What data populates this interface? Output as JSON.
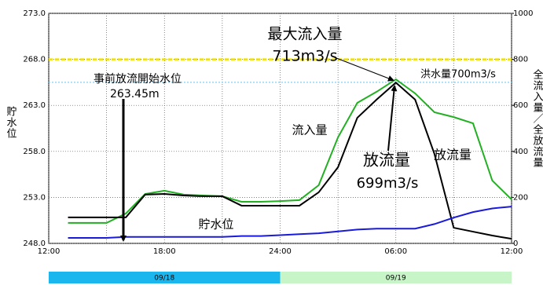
{
  "chart_data": {
    "type": "line",
    "x": [
      1,
      2,
      3,
      4,
      5,
      6,
      7,
      8,
      9,
      10,
      11,
      12,
      13,
      14,
      15,
      16,
      17,
      18,
      19,
      20,
      21,
      22,
      23,
      24
    ],
    "xlim": [
      0,
      24
    ],
    "xticks": [
      {
        "value": 0,
        "label": "12:00"
      },
      {
        "value": 6,
        "label": "18:00"
      },
      {
        "value": 12,
        "label": "24:00"
      },
      {
        "value": 18,
        "label": "06:00"
      },
      {
        "value": 24,
        "label": "12:00"
      }
    ],
    "ylabel": "貯水位",
    "ylim": [
      248,
      273
    ],
    "yticks": [
      {
        "value": 248,
        "label": "248.0"
      },
      {
        "value": 253,
        "label": "253.0"
      },
      {
        "value": 258,
        "label": "258.0"
      },
      {
        "value": 263,
        "label": "263.0"
      },
      {
        "value": 268,
        "label": "268.0"
      },
      {
        "value": 273,
        "label": "273.0"
      }
    ],
    "y2label": "全流入量／全放流量",
    "y2lim": [
      0,
      1000
    ],
    "y2ticks": [
      0,
      200,
      400,
      600,
      800,
      1000
    ],
    "grid": true,
    "series": [
      {
        "name": "流入量",
        "color": "#22b022",
        "axis": "y2",
        "values": [
          89,
          89,
          89,
          130,
          215,
          229,
          212,
          208,
          205,
          181,
          181,
          184,
          188,
          253,
          461,
          611,
          659,
          713,
          652,
          570,
          549,
          522,
          273,
          191
        ]
      },
      {
        "name": "放流量",
        "color": "#000000",
        "axis": "y2",
        "values": [
          113,
          113,
          113,
          113,
          212,
          215,
          208,
          205,
          205,
          164,
          164,
          164,
          164,
          222,
          331,
          546,
          625,
          699,
          625,
          389,
          68,
          51,
          34,
          20
        ]
      },
      {
        "name": "貯水位",
        "color": "#1a1adb",
        "values": [
          248.6,
          248.6,
          248.6,
          248.7,
          248.7,
          248.7,
          248.7,
          248.7,
          248.7,
          248.8,
          248.8,
          248.9,
          249.0,
          249.1,
          249.3,
          249.5,
          249.6,
          249.6,
          249.6,
          250.1,
          250.8,
          251.4,
          251.8,
          252.0
        ]
      }
    ],
    "reference_lines": [
      {
        "value": 268,
        "color": "#f0e000"
      },
      {
        "value": 700,
        "axis": "y2",
        "color": "#88ccee"
      }
    ],
    "annotations": [
      {
        "text": "最大流入量",
        "color": "#22b022"
      },
      {
        "text": "713m3/s",
        "color": "#22b022"
      },
      {
        "text": "洪水量700m3/s",
        "color": "#000000"
      },
      {
        "text": "事前放流開始水位",
        "color": "#000000"
      },
      {
        "text": "263.45m",
        "color": "#000000"
      },
      {
        "text": "流入量",
        "color": "#22b022"
      },
      {
        "text": "放流量",
        "color": "#000000"
      },
      {
        "text": "699m3/s",
        "color": "#000000"
      },
      {
        "text": "放流量",
        "color": "#000000"
      },
      {
        "text": "貯水位",
        "color": "#1a1adb"
      }
    ],
    "date_bands": [
      {
        "label": "09/18",
        "color": "#1ab6ee"
      },
      {
        "label": "09/19",
        "color": "#c8f5c8"
      }
    ]
  }
}
